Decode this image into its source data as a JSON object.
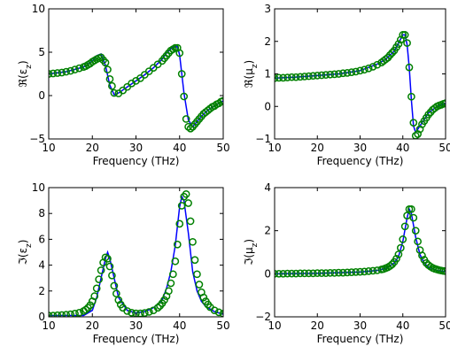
{
  "colors": {
    "line": "#0000ff",
    "markers": "#008000"
  },
  "chart_data": [
    {
      "id": "re-eps",
      "type": "line",
      "xlabel": "Frequency (THz)",
      "ylabel": "ℜ(ε_z)",
      "xlim": [
        10,
        50
      ],
      "ylim": [
        -5,
        10
      ],
      "xticks": [
        "10",
        "20",
        "30",
        "40",
        "50"
      ],
      "yticks": [
        "-5",
        "0",
        "5",
        "10"
      ],
      "grid": false,
      "series": [
        {
          "style": "solid line",
          "x": [
            10,
            14,
            18,
            20,
            21,
            22,
            23,
            24,
            25,
            26,
            28,
            30,
            32,
            34,
            36,
            37,
            38,
            39,
            39.5,
            40,
            41,
            42,
            43,
            44,
            45,
            46,
            47,
            48,
            50
          ],
          "y": [
            2.5,
            2.75,
            3.3,
            4.0,
            4.6,
            4.8,
            3.5,
            1.2,
            0.1,
            0.3,
            1.0,
            1.7,
            2.4,
            3.2,
            4.2,
            4.9,
            5.4,
            5.7,
            5.6,
            4.7,
            0.3,
            -2.8,
            -3.6,
            -3.0,
            -2.4,
            -1.9,
            -1.5,
            -1.2,
            -0.6
          ]
        },
        {
          "style": "open circles",
          "x": [
            10,
            11,
            12,
            13,
            14,
            15,
            16,
            17,
            18,
            18.5,
            19,
            19.5,
            20,
            20.5,
            21,
            21.5,
            22,
            22.5,
            23,
            23.5,
            24,
            24.5,
            25,
            26,
            27,
            28,
            29,
            30,
            31,
            32,
            33,
            34,
            35,
            36,
            36.5,
            37,
            37.5,
            38,
            38.5,
            39,
            39.5,
            40,
            40.5,
            41,
            41.5,
            42,
            42.5,
            43,
            43.5,
            44,
            44.5,
            45,
            45.5,
            46,
            46.5,
            47,
            47.5,
            48,
            48.5,
            49,
            49.5,
            50
          ],
          "y": [
            2.5,
            2.55,
            2.6,
            2.65,
            2.75,
            2.85,
            3.0,
            3.15,
            3.3,
            3.4,
            3.55,
            3.7,
            3.9,
            4.05,
            4.2,
            4.3,
            4.4,
            4.1,
            3.8,
            3.0,
            1.9,
            1.1,
            0.3,
            0.25,
            0.6,
            1.0,
            1.4,
            1.7,
            2.0,
            2.4,
            2.8,
            3.2,
            3.6,
            4.0,
            4.3,
            4.6,
            4.9,
            5.2,
            5.35,
            5.5,
            5.5,
            4.9,
            2.5,
            -0.1,
            -2.7,
            -3.6,
            -3.8,
            -3.6,
            -3.3,
            -3.0,
            -2.7,
            -2.4,
            -2.1,
            -1.9,
            -1.7,
            -1.5,
            -1.3,
            -1.2,
            -1.0,
            -0.9,
            -0.7,
            -0.6
          ]
        }
      ]
    },
    {
      "id": "re-mu",
      "type": "line",
      "xlabel": "Frequency (THz)",
      "ylabel": "ℜ(μ_z)",
      "xlim": [
        10,
        50
      ],
      "ylim": [
        -1,
        3
      ],
      "xticks": [
        "10",
        "20",
        "30",
        "40",
        "50"
      ],
      "yticks": [
        "-1",
        "0",
        "1",
        "2",
        "3"
      ],
      "grid": false,
      "series": [
        {
          "style": "solid line",
          "x": [
            10,
            15,
            20,
            25,
            30,
            34,
            36,
            38,
            39,
            40,
            40.5,
            41,
            41.5,
            42,
            42.5,
            43,
            44,
            45,
            46,
            47,
            48,
            49,
            50
          ],
          "y": [
            0.87,
            0.9,
            0.95,
            1.0,
            1.1,
            1.3,
            1.45,
            1.7,
            1.95,
            2.2,
            2.2,
            1.9,
            1.2,
            0.2,
            -0.6,
            -0.8,
            -0.6,
            -0.4,
            -0.2,
            -0.1,
            0.0,
            0.05,
            0.1
          ]
        },
        {
          "style": "open circles",
          "x": [
            10,
            11,
            12,
            13,
            14,
            15,
            16,
            17,
            18,
            19,
            20,
            21,
            22,
            23,
            24,
            25,
            26,
            27,
            28,
            29,
            30,
            31,
            32,
            33,
            34,
            35,
            35.5,
            36,
            36.5,
            37,
            37.5,
            38,
            38.5,
            39,
            39.5,
            40,
            40.5,
            41,
            41.5,
            42,
            42.5,
            43,
            43.5,
            44,
            44.5,
            45,
            45.5,
            46,
            46.5,
            47,
            47.5,
            48,
            48.5,
            49,
            49.5,
            50
          ],
          "y": [
            0.87,
            0.88,
            0.88,
            0.89,
            0.9,
            0.9,
            0.91,
            0.92,
            0.93,
            0.94,
            0.95,
            0.96,
            0.97,
            0.98,
            0.99,
            1.0,
            1.02,
            1.03,
            1.05,
            1.07,
            1.1,
            1.13,
            1.17,
            1.22,
            1.28,
            1.35,
            1.4,
            1.45,
            1.5,
            1.58,
            1.65,
            1.72,
            1.82,
            1.92,
            2.05,
            2.2,
            2.2,
            1.95,
            1.2,
            0.3,
            -0.5,
            -0.9,
            -0.85,
            -0.7,
            -0.55,
            -0.45,
            -0.35,
            -0.25,
            -0.18,
            -0.1,
            -0.05,
            0.0,
            0.03,
            0.05,
            0.08,
            0.1
          ]
        }
      ]
    },
    {
      "id": "im-eps",
      "type": "line",
      "xlabel": "Frequency (THz)",
      "ylabel": "ℑ(ε_z)",
      "xlim": [
        10,
        50
      ],
      "ylim": [
        0,
        10
      ],
      "xticks": [
        "10",
        "20",
        "30",
        "40",
        "50"
      ],
      "yticks": [
        "0",
        "2",
        "4",
        "6",
        "8",
        "10"
      ],
      "grid": false,
      "series": [
        {
          "style": "solid line",
          "x": [
            10,
            15,
            18,
            20,
            21,
            22,
            23,
            23.5,
            24,
            25,
            26,
            28,
            30,
            32,
            34,
            36,
            37,
            38,
            39,
            40,
            40.5,
            41,
            42,
            43,
            44,
            45,
            46,
            48,
            50
          ],
          "y": [
            0.1,
            0.1,
            0.1,
            0.5,
            1.5,
            3.0,
            4.5,
            5.0,
            4.5,
            3.0,
            1.5,
            0.5,
            0.3,
            0.4,
            0.7,
            1.3,
            2.2,
            3.5,
            5.5,
            8.5,
            9.3,
            9.0,
            6.5,
            3.5,
            2.0,
            1.2,
            0.8,
            0.4,
            0.2
          ]
        },
        {
          "style": "open circles",
          "x": [
            10,
            11,
            12,
            13,
            14,
            15,
            16,
            17,
            18,
            18.5,
            19,
            19.5,
            20,
            20.5,
            21,
            21.5,
            22,
            22.5,
            23,
            23.5,
            24,
            24.5,
            25,
            25.5,
            26,
            26.5,
            27,
            28,
            29,
            30,
            31,
            32,
            33,
            34,
            35,
            35.5,
            36,
            36.5,
            37,
            37.5,
            38,
            38.5,
            39,
            39.5,
            40,
            40.5,
            41,
            41.5,
            42,
            42.5,
            43,
            43.5,
            44,
            44.5,
            45,
            45.5,
            46,
            46.5,
            47,
            48,
            49,
            50
          ],
          "y": [
            0.1,
            0.1,
            0.12,
            0.14,
            0.16,
            0.2,
            0.25,
            0.32,
            0.45,
            0.55,
            0.7,
            0.9,
            1.2,
            1.6,
            2.2,
            2.9,
            3.6,
            4.2,
            4.6,
            4.5,
            3.9,
            3.2,
            2.4,
            1.8,
            1.3,
            0.95,
            0.7,
            0.45,
            0.32,
            0.27,
            0.27,
            0.3,
            0.38,
            0.5,
            0.7,
            0.85,
            1.05,
            1.3,
            1.6,
            2.0,
            2.6,
            3.3,
            4.3,
            5.6,
            7.2,
            8.6,
            9.3,
            9.5,
            8.8,
            7.4,
            5.8,
            4.4,
            3.3,
            2.5,
            1.9,
            1.5,
            1.2,
            0.95,
            0.75,
            0.5,
            0.35,
            0.25
          ]
        }
      ]
    },
    {
      "id": "im-mu",
      "type": "line",
      "xlabel": "Frequency (THz)",
      "ylabel": "ℑ(μ_z)",
      "xlim": [
        10,
        50
      ],
      "ylim": [
        -2,
        4
      ],
      "xticks": [
        "10",
        "20",
        "30",
        "40",
        "50"
      ],
      "yticks": [
        "-2",
        "0",
        "2",
        "4"
      ],
      "grid": false,
      "series": [
        {
          "style": "solid line",
          "x": [
            10,
            20,
            30,
            34,
            36,
            38,
            39,
            40,
            41,
            41.5,
            42,
            43,
            44,
            45,
            46,
            48,
            50
          ],
          "y": [
            0.0,
            0.02,
            0.08,
            0.15,
            0.25,
            0.5,
            0.8,
            1.5,
            2.6,
            3.0,
            2.8,
            1.7,
            0.9,
            0.5,
            0.3,
            0.15,
            0.1
          ]
        },
        {
          "style": "open circles",
          "x": [
            10,
            11,
            12,
            13,
            14,
            15,
            16,
            17,
            18,
            19,
            20,
            21,
            22,
            23,
            24,
            25,
            26,
            27,
            28,
            29,
            30,
            31,
            32,
            33,
            34,
            35,
            35.5,
            36,
            36.5,
            37,
            37.5,
            38,
            38.5,
            39,
            39.5,
            40,
            40.5,
            41,
            41.5,
            42,
            42.5,
            43,
            43.5,
            44,
            44.5,
            45,
            45.5,
            46,
            46.5,
            47,
            47.5,
            48,
            48.5,
            49,
            49.5,
            50
          ],
          "y": [
            0.0,
            0.0,
            0.0,
            0.01,
            0.01,
            0.01,
            0.02,
            0.02,
            0.02,
            0.02,
            0.03,
            0.03,
            0.03,
            0.04,
            0.04,
            0.05,
            0.05,
            0.06,
            0.07,
            0.08,
            0.09,
            0.1,
            0.12,
            0.14,
            0.16,
            0.2,
            0.22,
            0.26,
            0.3,
            0.36,
            0.44,
            0.55,
            0.7,
            0.9,
            1.2,
            1.6,
            2.2,
            2.7,
            3.0,
            3.0,
            2.6,
            2.0,
            1.5,
            1.1,
            0.85,
            0.65,
            0.5,
            0.4,
            0.33,
            0.27,
            0.23,
            0.2,
            0.17,
            0.15,
            0.13,
            0.12
          ]
        }
      ]
    }
  ]
}
